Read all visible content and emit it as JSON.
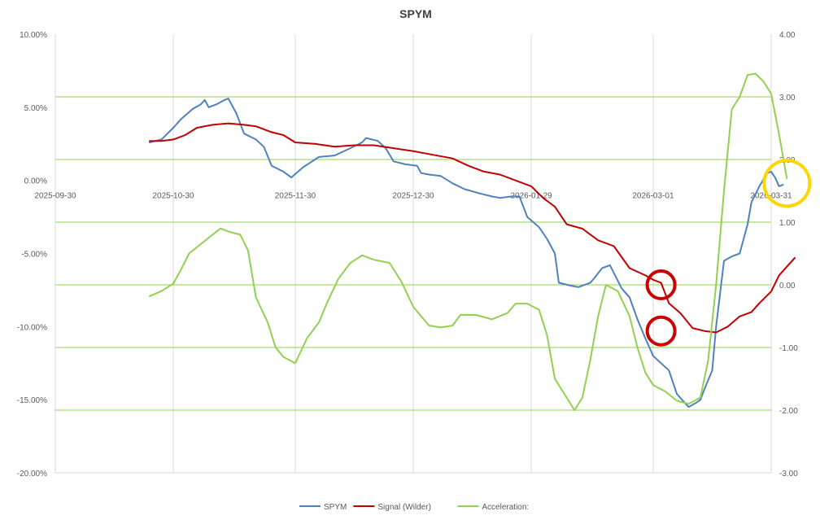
{
  "chart_data": {
    "type": "line",
    "title": "SPYM",
    "x_ticks": [
      "2025-09-30",
      "2025-10-30",
      "2025-11-30",
      "2025-12-30",
      "2026-01-29",
      "2026-03-01",
      "2026-03-31"
    ],
    "x_range": [
      "2025-09-30",
      "2026-03-31"
    ],
    "y_left": {
      "range": [
        -20,
        10
      ],
      "ticks": [
        -20,
        -15,
        -10,
        -5,
        0,
        5,
        10
      ],
      "tick_labels": [
        "-20.00%",
        "-15.00%",
        "-10.00%",
        "-5.00%",
        "0.00%",
        "5.00%",
        "10.00%"
      ]
    },
    "y_right": {
      "range": [
        -3,
        4
      ],
      "ticks": [
        -3,
        -2,
        -1,
        0,
        1,
        2,
        3,
        4
      ],
      "tick_labels": [
        "-3.00",
        "-2.00",
        "-1.00",
        "0.00",
        "1.00",
        "2.00",
        "3.00",
        "4.00"
      ]
    },
    "gridlines": "vertical at x ticks, horizontal at right-axis ticks (green)",
    "legend_position": "bottom",
    "colors": {
      "SPYM": "#4f81bd",
      "Signal (Wilder)": "#c00000",
      "Acceleration:": "#92d050",
      "grid_vertical": "#d9d9d9",
      "grid_horizontal": "#92d050",
      "circle_red": "#cc0000",
      "circle_yellow": "#ffd700"
    },
    "series": [
      {
        "name": "SPYM",
        "axis": "left",
        "points": [
          [
            "2025-10-24",
            2.6
          ],
          [
            "2025-10-27",
            2.8
          ],
          [
            "2025-10-30",
            3.6
          ],
          [
            "2025-11-01",
            4.2
          ],
          [
            "2025-11-04",
            4.9
          ],
          [
            "2025-11-06",
            5.2
          ],
          [
            "2025-11-07",
            5.5
          ],
          [
            "2025-11-08",
            5.0
          ],
          [
            "2025-11-10",
            5.2
          ],
          [
            "2025-11-12",
            5.5
          ],
          [
            "2025-11-13",
            5.6
          ],
          [
            "2025-11-15",
            4.6
          ],
          [
            "2025-11-17",
            3.2
          ],
          [
            "2025-11-20",
            2.8
          ],
          [
            "2025-11-22",
            2.3
          ],
          [
            "2025-11-24",
            1.0
          ],
          [
            "2025-11-27",
            0.6
          ],
          [
            "2025-11-29",
            0.2
          ],
          [
            "2025-12-02",
            0.9
          ],
          [
            "2025-12-06",
            1.6
          ],
          [
            "2025-12-10",
            1.7
          ],
          [
            "2025-12-14",
            2.2
          ],
          [
            "2025-12-17",
            2.6
          ],
          [
            "2025-12-18",
            2.9
          ],
          [
            "2025-12-21",
            2.7
          ],
          [
            "2025-12-23",
            2.2
          ],
          [
            "2025-12-25",
            1.3
          ],
          [
            "2025-12-28",
            1.1
          ],
          [
            "2025-12-31",
            1.0
          ],
          [
            "2026-01-01",
            0.5
          ],
          [
            "2026-01-03",
            0.4
          ],
          [
            "2026-01-06",
            0.3
          ],
          [
            "2026-01-09",
            -0.2
          ],
          [
            "2026-01-12",
            -0.6
          ],
          [
            "2026-01-16",
            -0.9
          ],
          [
            "2026-01-19",
            -1.1
          ],
          [
            "2026-01-21",
            -1.2
          ],
          [
            "2026-01-24",
            -1.1
          ],
          [
            "2026-01-26",
            -1.1
          ],
          [
            "2026-01-28",
            -2.5
          ],
          [
            "2026-01-31",
            -3.2
          ],
          [
            "2026-02-02",
            -4.0
          ],
          [
            "2026-02-04",
            -5.0
          ],
          [
            "2026-02-05",
            -7.0
          ],
          [
            "2026-02-08",
            -7.2
          ],
          [
            "2026-02-10",
            -7.3
          ],
          [
            "2026-02-13",
            -7.0
          ],
          [
            "2026-02-14",
            -6.7
          ],
          [
            "2026-02-16",
            -6.0
          ],
          [
            "2026-02-18",
            -5.8
          ],
          [
            "2026-02-21",
            -7.4
          ],
          [
            "2026-02-23",
            -8.0
          ],
          [
            "2026-02-25",
            -9.5
          ],
          [
            "2026-02-27",
            -10.8
          ],
          [
            "2026-03-01",
            -12.0
          ],
          [
            "2026-03-03",
            -12.5
          ],
          [
            "2026-03-05",
            -13.0
          ],
          [
            "2026-03-07",
            -14.6
          ],
          [
            "2026-03-09",
            -15.2
          ],
          [
            "2026-03-10",
            -15.5
          ],
          [
            "2026-03-12",
            -15.2
          ],
          [
            "2026-03-13",
            -15.0
          ],
          [
            "2026-03-14",
            -14.3
          ],
          [
            "2026-03-16",
            -13.0
          ],
          [
            "2026-03-17",
            -10.0
          ],
          [
            "2026-03-19",
            -5.5
          ],
          [
            "2026-03-21",
            -5.2
          ],
          [
            "2026-03-23",
            -5.0
          ],
          [
            "2026-03-25",
            -3.0
          ],
          [
            "2026-03-26",
            -1.5
          ],
          [
            "2026-03-28",
            -0.4
          ],
          [
            "2026-03-30",
            0.5
          ],
          [
            "2026-03-31",
            0.6
          ],
          [
            "2026-04-01",
            0.2
          ],
          [
            "2026-04-02",
            -0.4
          ],
          [
            "2026-04-03",
            -0.3
          ]
        ]
      },
      {
        "name": "Signal (Wilder)",
        "axis": "left",
        "points": [
          [
            "2025-10-24",
            2.7
          ],
          [
            "2025-10-27",
            2.7
          ],
          [
            "2025-10-30",
            2.8
          ],
          [
            "2025-11-02",
            3.1
          ],
          [
            "2025-11-05",
            3.6
          ],
          [
            "2025-11-09",
            3.8
          ],
          [
            "2025-11-13",
            3.9
          ],
          [
            "2025-11-17",
            3.8
          ],
          [
            "2025-11-20",
            3.7
          ],
          [
            "2025-11-24",
            3.3
          ],
          [
            "2025-11-27",
            3.1
          ],
          [
            "2025-11-30",
            2.6
          ],
          [
            "2025-12-05",
            2.5
          ],
          [
            "2025-12-10",
            2.3
          ],
          [
            "2025-12-15",
            2.4
          ],
          [
            "2025-12-20",
            2.4
          ],
          [
            "2025-12-25",
            2.2
          ],
          [
            "2025-12-30",
            2.0
          ],
          [
            "2026-01-03",
            1.8
          ],
          [
            "2026-01-09",
            1.5
          ],
          [
            "2026-01-13",
            1.0
          ],
          [
            "2026-01-17",
            0.6
          ],
          [
            "2026-01-21",
            0.4
          ],
          [
            "2026-01-25",
            0.0
          ],
          [
            "2026-01-29",
            -0.4
          ],
          [
            "2026-02-01",
            -1.2
          ],
          [
            "2026-02-04",
            -1.8
          ],
          [
            "2026-02-07",
            -3.0
          ],
          [
            "2026-02-11",
            -3.3
          ],
          [
            "2026-02-15",
            -4.1
          ],
          [
            "2026-02-19",
            -4.5
          ],
          [
            "2026-02-23",
            -6.0
          ],
          [
            "2026-02-27",
            -6.5
          ],
          [
            "2026-03-01",
            -6.8
          ],
          [
            "2026-03-03",
            -7.0
          ],
          [
            "2026-03-05",
            -8.4
          ],
          [
            "2026-03-08",
            -9.1
          ],
          [
            "2026-03-11",
            -10.1
          ],
          [
            "2026-03-14",
            -10.3
          ],
          [
            "2026-03-17",
            -10.4
          ],
          [
            "2026-03-20",
            -10.0
          ],
          [
            "2026-03-23",
            -9.3
          ],
          [
            "2026-03-26",
            -9.0
          ],
          [
            "2026-03-28",
            -8.4
          ],
          [
            "2026-03-31",
            -7.6
          ],
          [
            "2026-04-02",
            -6.5
          ],
          [
            "2026-04-04",
            -5.9
          ],
          [
            "2026-04-06",
            -5.3
          ]
        ]
      },
      {
        "name": "Acceleration:",
        "axis": "right",
        "points": [
          [
            "2025-10-24",
            -0.18
          ],
          [
            "2025-10-27",
            -0.1
          ],
          [
            "2025-10-30",
            0.02
          ],
          [
            "2025-11-01",
            0.25
          ],
          [
            "2025-11-03",
            0.5
          ],
          [
            "2025-11-06",
            0.65
          ],
          [
            "2025-11-09",
            0.8
          ],
          [
            "2025-11-11",
            0.9
          ],
          [
            "2025-11-13",
            0.85
          ],
          [
            "2025-11-16",
            0.8
          ],
          [
            "2025-11-18",
            0.55
          ],
          [
            "2025-11-20",
            -0.2
          ],
          [
            "2025-11-23",
            -0.6
          ],
          [
            "2025-11-25",
            -1.0
          ],
          [
            "2025-11-27",
            -1.15
          ],
          [
            "2025-11-30",
            -1.25
          ],
          [
            "2025-12-03",
            -0.85
          ],
          [
            "2025-12-06",
            -0.6
          ],
          [
            "2025-12-08",
            -0.3
          ],
          [
            "2025-12-11",
            0.1
          ],
          [
            "2025-12-14",
            0.35
          ],
          [
            "2025-12-17",
            0.47
          ],
          [
            "2025-12-20",
            0.4
          ],
          [
            "2025-12-24",
            0.35
          ],
          [
            "2025-12-27",
            0.05
          ],
          [
            "2025-12-30",
            -0.35
          ],
          [
            "2026-01-03",
            -0.65
          ],
          [
            "2026-01-06",
            -0.68
          ],
          [
            "2026-01-09",
            -0.65
          ],
          [
            "2026-01-11",
            -0.48
          ],
          [
            "2026-01-15",
            -0.48
          ],
          [
            "2026-01-19",
            -0.55
          ],
          [
            "2026-01-23",
            -0.45
          ],
          [
            "2026-01-25",
            -0.3
          ],
          [
            "2026-01-28",
            -0.3
          ],
          [
            "2026-01-31",
            -0.4
          ],
          [
            "2026-02-02",
            -0.8
          ],
          [
            "2026-02-04",
            -1.5
          ],
          [
            "2026-02-07",
            -1.8
          ],
          [
            "2026-02-09",
            -2.0
          ],
          [
            "2026-02-11",
            -1.8
          ],
          [
            "2026-02-13",
            -1.2
          ],
          [
            "2026-02-15",
            -0.5
          ],
          [
            "2026-02-17",
            0.0
          ],
          [
            "2026-02-20",
            -0.1
          ],
          [
            "2026-02-23",
            -0.5
          ],
          [
            "2026-02-25",
            -1.0
          ],
          [
            "2026-02-27",
            -1.4
          ],
          [
            "2026-03-01",
            -1.6
          ],
          [
            "2026-03-04",
            -1.7
          ],
          [
            "2026-03-07",
            -1.85
          ],
          [
            "2026-03-10",
            -1.9
          ],
          [
            "2026-03-13",
            -1.8
          ],
          [
            "2026-03-15",
            -1.2
          ],
          [
            "2026-03-17",
            0.0
          ],
          [
            "2026-03-19",
            1.5
          ],
          [
            "2026-03-21",
            2.8
          ],
          [
            "2026-03-23",
            3.0
          ],
          [
            "2026-03-25",
            3.35
          ],
          [
            "2026-03-27",
            3.37
          ],
          [
            "2026-03-29",
            3.25
          ],
          [
            "2026-03-31",
            3.05
          ],
          [
            "2026-04-02",
            2.4
          ],
          [
            "2026-04-04",
            1.7
          ]
        ]
      }
    ],
    "annotations": [
      {
        "shape": "circle",
        "color": "red",
        "at": [
          "2026-03-03",
          0.0
        ],
        "axis": "right"
      },
      {
        "shape": "circle",
        "color": "red",
        "at": [
          "2026-03-03",
          -10.3
        ],
        "axis": "left"
      },
      {
        "shape": "circle",
        "color": "yellow",
        "at": [
          "2026-04-04",
          -0.2
        ],
        "axis": "left"
      }
    ]
  }
}
